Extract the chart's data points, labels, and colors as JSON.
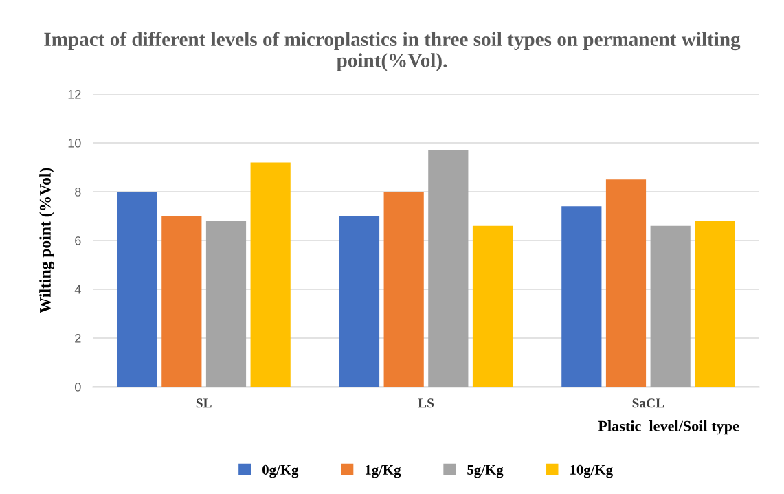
{
  "chart_data": {
    "type": "bar",
    "title": "Impact of different levels of microplastics in three soil types on permanent wilting point(%Vol).",
    "xlabel": "Plastic  level/Soil type",
    "ylabel": "Wilting point (%Vol)",
    "categories": [
      "SL",
      "LS",
      "SaCL"
    ],
    "series": [
      {
        "name": "0g/Kg",
        "color": "#4472c4",
        "values": [
          8,
          7,
          7.4
        ]
      },
      {
        "name": "1g/Kg",
        "color": "#ed7d31",
        "values": [
          7,
          8,
          8.5
        ]
      },
      {
        "name": "5g/Kg",
        "color": "#a5a5a5",
        "values": [
          6.8,
          9.7,
          6.6
        ]
      },
      {
        "name": "10g/Kg",
        "color": "#ffc000",
        "values": [
          9.2,
          6.6,
          6.8
        ]
      }
    ],
    "ylim": [
      0,
      12
    ],
    "yticks": [
      0,
      2,
      4,
      6,
      8,
      10,
      12
    ],
    "grid": "y",
    "legend": "bottom"
  }
}
